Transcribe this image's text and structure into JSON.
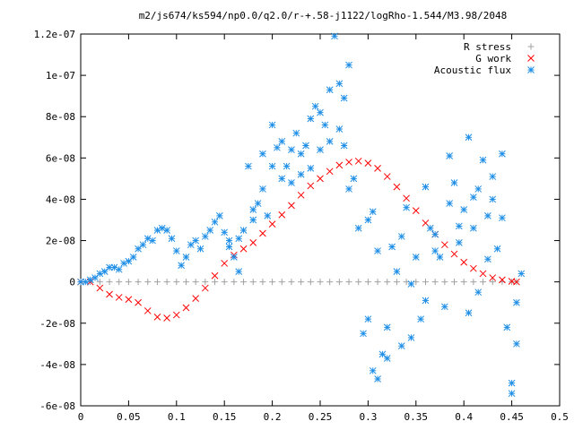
{
  "chart_data": {
    "type": "scatter",
    "title": "m2/js674/ks594/np0.0/q2.0/r-+.58-j1122/logRho-1.544/M3.98/2048",
    "xlabel": "",
    "ylabel": "",
    "xlim": [
      0,
      0.5
    ],
    "ylim": [
      -6e-08,
      1.2e-07
    ],
    "x_ticks": [
      0,
      0.05,
      0.1,
      0.15,
      0.2,
      0.25,
      0.3,
      0.35,
      0.4,
      0.45,
      0.5
    ],
    "x_tick_labels": [
      "0",
      "0.05",
      "0.1",
      "0.15",
      "0.2",
      "0.25",
      "0.3",
      "0.35",
      "0.4",
      "0.45",
      "0.5"
    ],
    "y_ticks": [
      -6e-08,
      -4e-08,
      -2e-08,
      0,
      2e-08,
      4e-08,
      6e-08,
      8e-08,
      1e-07,
      1.2e-07
    ],
    "y_tick_labels": [
      "-6e-08",
      "-4e-08",
      "-2e-08",
      "0",
      "2e-08",
      "4e-08",
      "6e-08",
      "8e-08",
      "1e-07",
      "1.2e-07"
    ],
    "grid": false,
    "legend_position": "top-right",
    "series": [
      {
        "name": "R stress",
        "marker": "plus",
        "color": "#a0a0a0",
        "points": [
          [
            0,
            0
          ],
          [
            0.01,
            0
          ],
          [
            0.02,
            0
          ],
          [
            0.03,
            0
          ],
          [
            0.04,
            0
          ],
          [
            0.05,
            0
          ],
          [
            0.06,
            0
          ],
          [
            0.07,
            0
          ],
          [
            0.08,
            0
          ],
          [
            0.09,
            0
          ],
          [
            0.1,
            0
          ],
          [
            0.11,
            0
          ],
          [
            0.12,
            0
          ],
          [
            0.13,
            0
          ],
          [
            0.14,
            0
          ],
          [
            0.15,
            0
          ],
          [
            0.16,
            0
          ],
          [
            0.17,
            0
          ],
          [
            0.18,
            0
          ],
          [
            0.19,
            0
          ],
          [
            0.2,
            0
          ],
          [
            0.21,
            0
          ],
          [
            0.22,
            0
          ],
          [
            0.23,
            0
          ],
          [
            0.24,
            0
          ],
          [
            0.25,
            0
          ],
          [
            0.26,
            0
          ],
          [
            0.27,
            0
          ],
          [
            0.28,
            0
          ],
          [
            0.29,
            0
          ],
          [
            0.3,
            0
          ],
          [
            0.31,
            0
          ],
          [
            0.32,
            0
          ],
          [
            0.33,
            0
          ],
          [
            0.34,
            0
          ],
          [
            0.35,
            0
          ],
          [
            0.36,
            0
          ],
          [
            0.37,
            0
          ],
          [
            0.38,
            0
          ],
          [
            0.39,
            0
          ],
          [
            0.4,
            0
          ],
          [
            0.41,
            0
          ],
          [
            0.42,
            0
          ],
          [
            0.43,
            0
          ],
          [
            0.44,
            0
          ],
          [
            0.45,
            0
          ],
          [
            0.455,
            0
          ]
        ]
      },
      {
        "name": "G work",
        "marker": "cross",
        "color": "#ff0000",
        "points": [
          [
            0,
            0
          ],
          [
            0.01,
            0
          ],
          [
            0.02,
            -3e-09
          ],
          [
            0.03,
            -6e-09
          ],
          [
            0.04,
            -7.5e-09
          ],
          [
            0.05,
            -8.5e-09
          ],
          [
            0.06,
            -1e-08
          ],
          [
            0.07,
            -1.4e-08
          ],
          [
            0.08,
            -1.7e-08
          ],
          [
            0.09,
            -1.75e-08
          ],
          [
            0.1,
            -1.6e-08
          ],
          [
            0.11,
            -1.25e-08
          ],
          [
            0.12,
            -8e-09
          ],
          [
            0.13,
            -3e-09
          ],
          [
            0.14,
            3e-09
          ],
          [
            0.15,
            9e-09
          ],
          [
            0.16,
            1.3e-08
          ],
          [
            0.17,
            1.6e-08
          ],
          [
            0.18,
            1.9e-08
          ],
          [
            0.19,
            2.35e-08
          ],
          [
            0.2,
            2.8e-08
          ],
          [
            0.21,
            3.25e-08
          ],
          [
            0.22,
            3.7e-08
          ],
          [
            0.23,
            4.2e-08
          ],
          [
            0.24,
            4.65e-08
          ],
          [
            0.25,
            5e-08
          ],
          [
            0.26,
            5.35e-08
          ],
          [
            0.27,
            5.65e-08
          ],
          [
            0.28,
            5.8e-08
          ],
          [
            0.29,
            5.85e-08
          ],
          [
            0.3,
            5.75e-08
          ],
          [
            0.31,
            5.5e-08
          ],
          [
            0.32,
            5.1e-08
          ],
          [
            0.33,
            4.6e-08
          ],
          [
            0.34,
            4.05e-08
          ],
          [
            0.35,
            3.45e-08
          ],
          [
            0.36,
            2.85e-08
          ],
          [
            0.37,
            2.3e-08
          ],
          [
            0.38,
            1.8e-08
          ],
          [
            0.39,
            1.35e-08
          ],
          [
            0.4,
            9.5e-09
          ],
          [
            0.41,
            6.5e-09
          ],
          [
            0.42,
            4e-09
          ],
          [
            0.43,
            2e-09
          ],
          [
            0.44,
            1e-09
          ],
          [
            0.45,
            3e-10
          ],
          [
            0.455,
            0
          ]
        ]
      },
      {
        "name": "Acoustic flux",
        "marker": "star",
        "color": "#1e8ee6",
        "points": [
          [
            0,
            0
          ],
          [
            0.005,
            0
          ],
          [
            0.01,
            1e-09
          ],
          [
            0.015,
            2e-09
          ],
          [
            0.02,
            4e-09
          ],
          [
            0.025,
            5e-09
          ],
          [
            0.03,
            7e-09
          ],
          [
            0.035,
            7e-09
          ],
          [
            0.04,
            6e-09
          ],
          [
            0.045,
            9e-09
          ],
          [
            0.05,
            1e-08
          ],
          [
            0.055,
            1.2e-08
          ],
          [
            0.06,
            1.6e-08
          ],
          [
            0.065,
            1.8e-08
          ],
          [
            0.07,
            2.1e-08
          ],
          [
            0.075,
            2e-08
          ],
          [
            0.08,
            2.5e-08
          ],
          [
            0.085,
            2.6e-08
          ],
          [
            0.09,
            2.5e-08
          ],
          [
            0.095,
            2.1e-08
          ],
          [
            0.1,
            1.5e-08
          ],
          [
            0.105,
            8e-09
          ],
          [
            0.11,
            1.2e-08
          ],
          [
            0.115,
            1.8e-08
          ],
          [
            0.12,
            2e-08
          ],
          [
            0.125,
            1.6e-08
          ],
          [
            0.13,
            2.2e-08
          ],
          [
            0.135,
            2.5e-08
          ],
          [
            0.14,
            2.9e-08
          ],
          [
            0.145,
            3.2e-08
          ],
          [
            0.15,
            2.4e-08
          ],
          [
            0.155,
            2e-08
          ],
          [
            0.16,
            1.2e-08
          ],
          [
            0.165,
            5e-09
          ],
          [
            0.17,
            2.5e-08
          ],
          [
            0.175,
            5.6e-08
          ],
          [
            0.18,
            3e-08
          ],
          [
            0.185,
            3.8e-08
          ],
          [
            0.19,
            4.5e-08
          ],
          [
            0.195,
            3.2e-08
          ],
          [
            0.2,
            7.6e-08
          ],
          [
            0.205,
            6.5e-08
          ],
          [
            0.21,
            6.8e-08
          ],
          [
            0.215,
            5.6e-08
          ],
          [
            0.22,
            6.4e-08
          ],
          [
            0.225,
            7.2e-08
          ],
          [
            0.23,
            5.2e-08
          ],
          [
            0.235,
            6.6e-08
          ],
          [
            0.24,
            7.9e-08
          ],
          [
            0.245,
            8.5e-08
          ],
          [
            0.25,
            6.4e-08
          ],
          [
            0.255,
            7.6e-08
          ],
          [
            0.26,
            9.3e-08
          ],
          [
            0.265,
            1.19e-07
          ],
          [
            0.27,
            9.6e-08
          ],
          [
            0.275,
            8.9e-08
          ],
          [
            0.28,
            1.05e-07
          ],
          [
            0.285,
            5e-08
          ],
          [
            0.29,
            2.6e-08
          ],
          [
            0.295,
            -2.5e-08
          ],
          [
            0.3,
            -1.8e-08
          ],
          [
            0.305,
            3.4e-08
          ],
          [
            0.31,
            1.5e-08
          ],
          [
            0.315,
            -3.5e-08
          ],
          [
            0.32,
            -2.2e-08
          ],
          [
            0.325,
            1.7e-08
          ],
          [
            0.33,
            5e-09
          ],
          [
            0.335,
            2.2e-08
          ],
          [
            0.34,
            3.6e-08
          ],
          [
            0.345,
            -1e-09
          ],
          [
            0.35,
            1.2e-08
          ],
          [
            0.355,
            -1.8e-08
          ],
          [
            0.36,
            4.6e-08
          ],
          [
            0.365,
            2.6e-08
          ],
          [
            0.37,
            2.3e-08
          ],
          [
            0.375,
            1.2e-08
          ],
          [
            0.38,
            -1.2e-08
          ],
          [
            0.385,
            6.1e-08
          ],
          [
            0.39,
            4.8e-08
          ],
          [
            0.395,
            1.9e-08
          ],
          [
            0.4,
            3.5e-08
          ],
          [
            0.405,
            7e-08
          ],
          [
            0.41,
            2.6e-08
          ],
          [
            0.415,
            4.5e-08
          ],
          [
            0.42,
            5.9e-08
          ],
          [
            0.425,
            3.2e-08
          ],
          [
            0.43,
            4e-08
          ],
          [
            0.435,
            1.6e-08
          ],
          [
            0.44,
            3.1e-08
          ],
          [
            0.445,
            -2.2e-08
          ],
          [
            0.45,
            -5.4e-08
          ],
          [
            0.455,
            -3e-08
          ],
          [
            0.46,
            4e-09
          ],
          [
            0.3,
            3e-08
          ],
          [
            0.28,
            4.5e-08
          ],
          [
            0.26,
            6.8e-08
          ],
          [
            0.24,
            5.5e-08
          ],
          [
            0.22,
            4.8e-08
          ],
          [
            0.2,
            5.6e-08
          ],
          [
            0.19,
            6.2e-08
          ],
          [
            0.31,
            -4.7e-08
          ],
          [
            0.305,
            -4.3e-08
          ],
          [
            0.335,
            -3.1e-08
          ],
          [
            0.32,
            -3.7e-08
          ],
          [
            0.345,
            -2.7e-08
          ],
          [
            0.36,
            -9e-09
          ],
          [
            0.405,
            -1.5e-08
          ],
          [
            0.415,
            -5e-09
          ],
          [
            0.43,
            5.1e-08
          ],
          [
            0.44,
            6.2e-08
          ],
          [
            0.45,
            -4.9e-08
          ],
          [
            0.455,
            -1e-08
          ],
          [
            0.37,
            1.5e-08
          ],
          [
            0.385,
            3.8e-08
          ],
          [
            0.395,
            2.7e-08
          ],
          [
            0.41,
            4.1e-08
          ],
          [
            0.425,
            1.1e-08
          ],
          [
            0.27,
            7.4e-08
          ],
          [
            0.275,
            6.6e-08
          ],
          [
            0.25,
            8.2e-08
          ],
          [
            0.23,
            6.2e-08
          ],
          [
            0.21,
            5e-08
          ],
          [
            0.18,
            3.5e-08
          ],
          [
            0.165,
            2.1e-08
          ],
          [
            0.155,
            1.7e-08
          ]
        ]
      }
    ]
  }
}
